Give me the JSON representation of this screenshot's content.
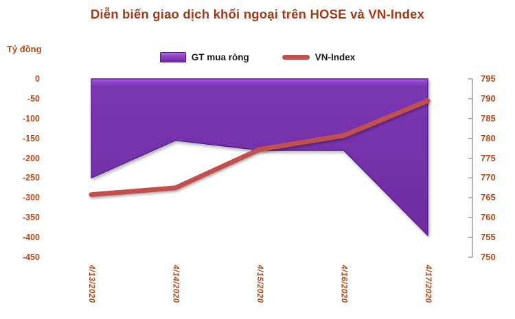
{
  "title": "Diễn biến giao dịch khối ngoại trên HOSE và VN-Index",
  "left_axis_unit": "Tỷ đồng",
  "legend": {
    "area_label": "GT mua ròng",
    "line_label": "VN-Index"
  },
  "colors": {
    "title_text": "#A23B15",
    "axis_text": "#B04A1A",
    "legend_text": "#1A1A1A",
    "axis_line": "#8C8C8C",
    "purple": "#7B35B2",
    "purple_highlight": "#B06CE8",
    "purple_mid": "#8F46CA",
    "purple_deep": "#6E2CA0",
    "purple_edge": "#571F8E",
    "red": "#C0504D",
    "background": "#FFFFFF"
  },
  "chart_data": {
    "type": "combo",
    "title": "Diễn biến giao dịch khối ngoại trên HOSE và VN-Index",
    "categories": [
      "4/13/2020",
      "4/14/2020",
      "4/15/2020",
      "4/16/2020",
      "4/17/2020"
    ],
    "series": [
      {
        "name": "GT mua ròng",
        "type": "area",
        "axis": "left",
        "unit": "Tỷ đồng",
        "values": [
          -250,
          -155,
          -180,
          -180,
          -395
        ]
      },
      {
        "name": "VN-Index",
        "type": "line",
        "axis": "right",
        "values": [
          765.8,
          767.5,
          777.2,
          780.7,
          789.5
        ]
      }
    ],
    "left_axis": {
      "unit": "Tỷ đồng",
      "min": -450,
      "max": 0,
      "step": 50,
      "ticks": [
        "0",
        "-50",
        "-100",
        "-150",
        "-200",
        "-250",
        "-300",
        "-350",
        "-400",
        "-450"
      ]
    },
    "right_axis": {
      "min": 750,
      "max": 795,
      "step": 5,
      "ticks": [
        "795",
        "790",
        "785",
        "780",
        "775",
        "770",
        "765",
        "760",
        "755",
        "750"
      ]
    },
    "legend_position": "top",
    "grid": false
  }
}
